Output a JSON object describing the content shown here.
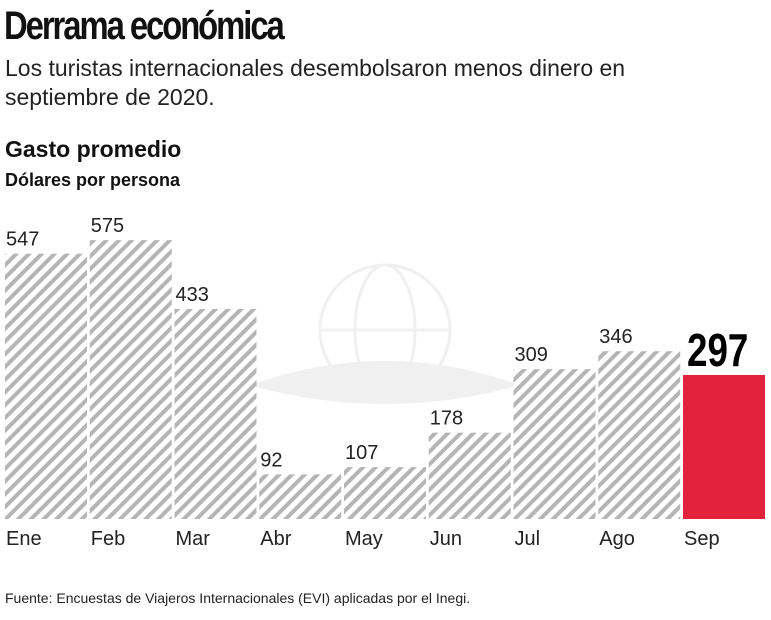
{
  "header": {
    "title": "Derrama económica",
    "subtitle": "Los turistas internacionales desembolsaron menos dinero en septiembre de 2020."
  },
  "chart_data": {
    "type": "bar",
    "title": "Gasto promedio",
    "ylabel": "Dólares por persona",
    "xlabel": "",
    "categories": [
      "Ene",
      "Feb",
      "Mar",
      "Abr",
      "May",
      "Jun",
      "Jul",
      "Ago",
      "Sep"
    ],
    "values": [
      547,
      575,
      433,
      92,
      107,
      178,
      309,
      346,
      297
    ],
    "highlight_index": 8,
    "ylim": [
      0,
      600
    ],
    "grid": false,
    "colors": {
      "hatch": "#b5b5b5",
      "highlight": "#e3233b"
    }
  },
  "footer": {
    "source": "Fuente: Encuestas de Viajeros Internacionales (EVI) aplicadas por el Inegi."
  }
}
